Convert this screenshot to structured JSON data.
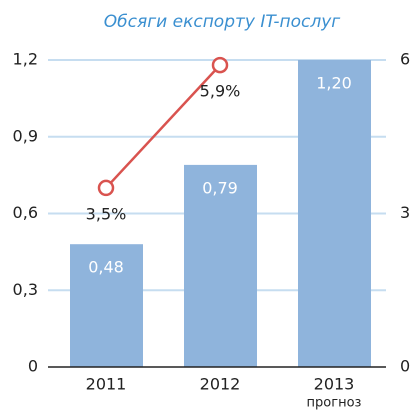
{
  "chart_data": {
    "type": "bar",
    "title": "Обсяги експорту IT-послуг",
    "categories": [
      "2011",
      "2012",
      "2013"
    ],
    "category_sublabels": [
      null,
      null,
      "прогноз"
    ],
    "series": [
      {
        "type": "bar",
        "color": "#8fb4dc",
        "values": [
          0.48,
          0.79,
          1.2
        ],
        "value_labels": [
          "0,48",
          "0,79",
          "1,20"
        ]
      },
      {
        "type": "line",
        "axis": "y2",
        "color": "#d9534f",
        "values": [
          3.5,
          5.9,
          null
        ],
        "value_labels": [
          "3,5%",
          "5,9%",
          null
        ]
      }
    ],
    "ylim": [
      0,
      1.2
    ],
    "yticks": [
      0,
      {
        "value": 0.3,
        "label": "0,3"
      },
      {
        "value": 0.6,
        "label": "0,6"
      },
      {
        "value": 0.9,
        "label": "0,9"
      },
      {
        "value": 1.2,
        "label": "1,2"
      }
    ],
    "y2lim": [
      0,
      6
    ],
    "y2ticks": [
      0,
      3,
      6
    ],
    "grid": true
  }
}
